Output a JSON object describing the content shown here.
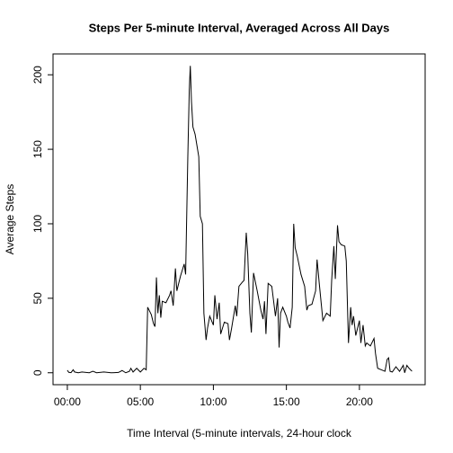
{
  "chart_data": {
    "type": "line",
    "title": "Steps Per 5-minute Interval, Averaged Across All Days",
    "x_label": "Time Interval (5-minute intervals, 24-hour clock",
    "y_label": "Average Steps",
    "color": "#000000",
    "x": [
      0,
      0.1,
      0.25,
      0.4,
      0.5,
      0.75,
      1,
      1.5,
      1.75,
      2,
      2.5,
      3,
      3.5,
      3.75,
      4,
      4.25,
      4.35,
      4.5,
      4.75,
      5,
      5.25,
      5.4,
      5.5,
      5.75,
      5.9,
      6,
      6.1,
      6.2,
      6.3,
      6.4,
      6.5,
      6.75,
      7,
      7.1,
      7.25,
      7.4,
      7.5,
      7.75,
      8,
      8.1,
      8.25,
      8.35,
      8.42,
      8.5,
      8.6,
      8.75,
      9,
      9.1,
      9.25,
      9.35,
      9.5,
      9.6,
      9.75,
      10,
      10.1,
      10.25,
      10.4,
      10.5,
      10.75,
      11,
      11.1,
      11.25,
      11.5,
      11.6,
      11.75,
      12,
      12.1,
      12.25,
      12.35,
      12.5,
      12.6,
      12.75,
      13,
      13.25,
      13.4,
      13.5,
      13.6,
      13.75,
      14,
      14.25,
      14.4,
      14.5,
      14.6,
      14.75,
      15,
      15.1,
      15.25,
      15.4,
      15.5,
      15.6,
      15.75,
      16,
      16.25,
      16.4,
      16.5,
      16.75,
      17,
      17.1,
      17.25,
      17.5,
      17.75,
      18,
      18.1,
      18.25,
      18.35,
      18.5,
      18.6,
      18.75,
      19,
      19.1,
      19.25,
      19.4,
      19.5,
      19.6,
      19.75,
      20,
      20.1,
      20.25,
      20.4,
      20.5,
      20.75,
      21,
      21.1,
      21.25,
      21.5,
      21.75,
      21.9,
      22,
      22.1,
      22.25,
      22.5,
      22.75,
      23,
      23.1,
      23.25,
      23.4,
      23.6
    ],
    "values": [
      1.7,
      0.3,
      0.1,
      2,
      0.5,
      0,
      0.5,
      0,
      1,
      0,
      0.5,
      0,
      0.2,
      1.5,
      0,
      1,
      3,
      0.5,
      3,
      0.5,
      3,
      2,
      44,
      39,
      33,
      31,
      64,
      40,
      52,
      37,
      48,
      47,
      52,
      55,
      45,
      70,
      55,
      65,
      73,
      66,
      145,
      190,
      206,
      182,
      165,
      160,
      145,
      105,
      100,
      40,
      22,
      30,
      38,
      32,
      52,
      36,
      47,
      26,
      34,
      33,
      22,
      30,
      45,
      38,
      58,
      61,
      62,
      94,
      80,
      40,
      27,
      67,
      55,
      42,
      36,
      48,
      26,
      60,
      58,
      38,
      50,
      17,
      40,
      44,
      38,
      34,
      30,
      44,
      100,
      84,
      78,
      66,
      58,
      42,
      45,
      46,
      55,
      76,
      60,
      35,
      40,
      38,
      62,
      85,
      63,
      99,
      88,
      86,
      85,
      75,
      20,
      44,
      32,
      38,
      25,
      35,
      20,
      32,
      18,
      20,
      18,
      23,
      13,
      3,
      2,
      1,
      9,
      10,
      1,
      0.5,
      4,
      1,
      5,
      0,
      5,
      3,
      1
    ],
    "xlim": [
      -0.98,
      24.5
    ],
    "ylim": [
      -8,
      214
    ],
    "xticks": [
      {
        "value": 0,
        "label": "00:00"
      },
      {
        "value": 5,
        "label": "05:00"
      },
      {
        "value": 10,
        "label": "10:00"
      },
      {
        "value": 15,
        "label": "15:00"
      },
      {
        "value": 20,
        "label": "20:00"
      }
    ],
    "yticks": [
      0,
      50,
      100,
      150,
      200
    ]
  }
}
